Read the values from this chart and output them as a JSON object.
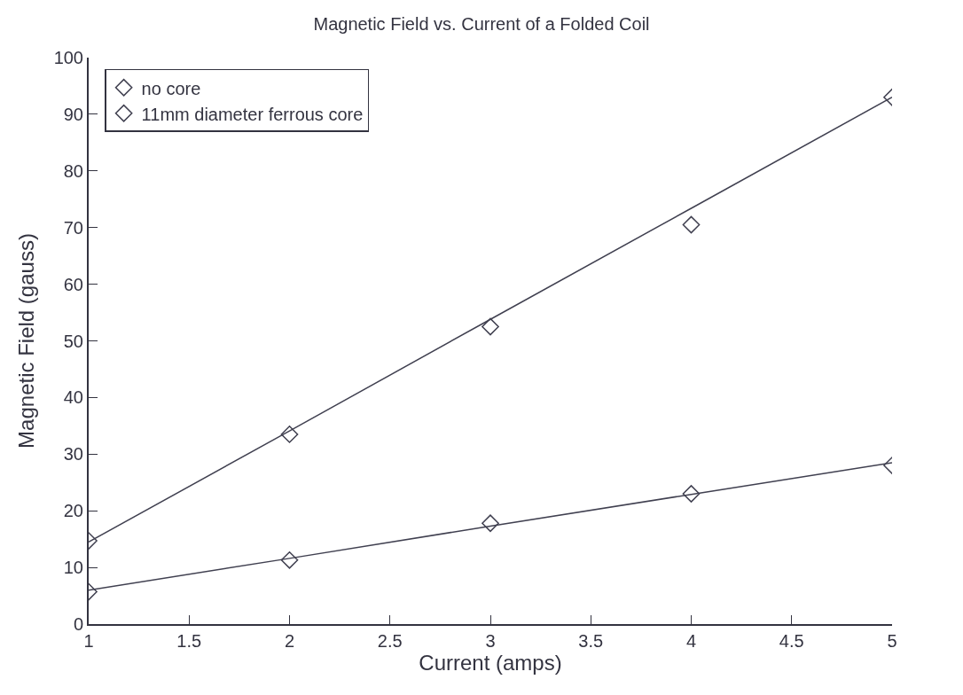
{
  "chart_data": {
    "type": "scatter",
    "title": "Magnetic Field vs. Current of a Folded Coil",
    "xlabel": "Current (amps)",
    "ylabel": "Magnetic Field (gauss)",
    "x": [
      1,
      2,
      3,
      4,
      5
    ],
    "series": [
      {
        "name": "no core",
        "color": "#404050",
        "values": [
          5.7,
          11.3,
          17.8,
          23,
          28
        ]
      },
      {
        "name": "11mm diameter ferrous core",
        "color": "#404050",
        "values": [
          14.7,
          33.5,
          52.5,
          70.5,
          93
        ]
      },
      {
        "type": "line",
        "marker": "none",
        "color": "#404050",
        "values": [
          6,
          11.6,
          17.3,
          22.9,
          28.5
        ]
      },
      {
        "type": "line",
        "marker": "none",
        "color": "#404050",
        "values": [
          14.5,
          34.1,
          53.8,
          73.4,
          93
        ]
      }
    ],
    "marker": "diamond",
    "xlim": [
      1,
      5
    ],
    "ylim": [
      0,
      100
    ],
    "xticks": [
      1,
      1.5,
      2,
      2.5,
      3,
      3.5,
      4,
      4.5,
      5
    ],
    "yticks": [
      0,
      10,
      20,
      30,
      40,
      50,
      60,
      70,
      80,
      90,
      100
    ],
    "grid": false,
    "legend": "top left"
  }
}
